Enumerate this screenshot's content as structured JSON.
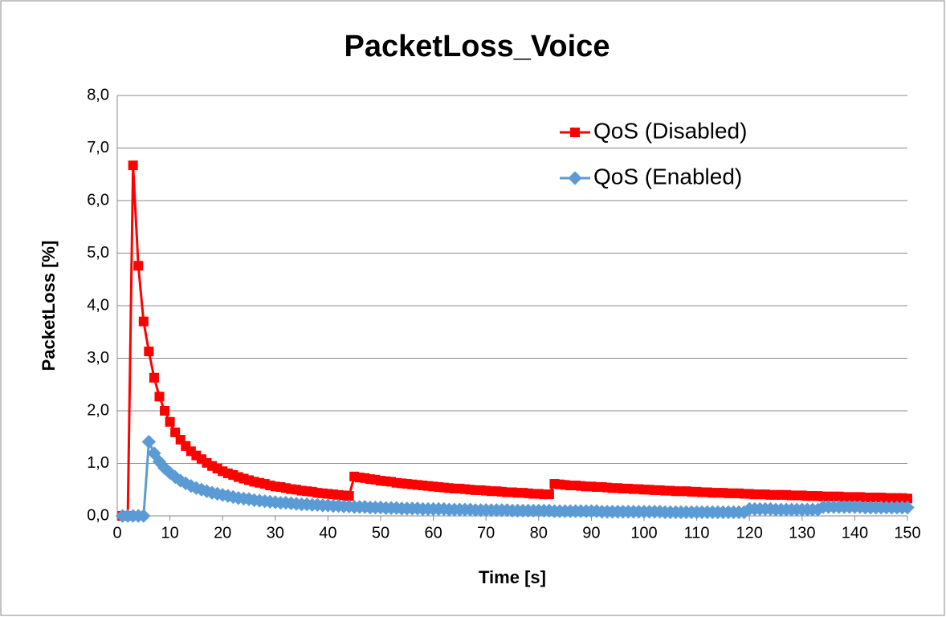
{
  "chart_data": {
    "type": "line",
    "title": "PacketLoss_Voice",
    "x_label": "Time [s]",
    "y_label": "PacketLoss [%]",
    "xlim": [
      0,
      150
    ],
    "xticks": [
      0,
      10,
      20,
      30,
      40,
      50,
      60,
      70,
      80,
      90,
      100,
      110,
      120,
      130,
      140,
      150
    ],
    "ylim": [
      0,
      8
    ],
    "yticks": [
      {
        "value": 0,
        "label": "0,0"
      },
      {
        "value": 1,
        "label": "1,0"
      },
      {
        "value": 2,
        "label": "2,0"
      },
      {
        "value": 3,
        "label": "3,0"
      },
      {
        "value": 4,
        "label": "4,0"
      },
      {
        "value": 5,
        "label": "5,0"
      },
      {
        "value": 6,
        "label": "6,0"
      },
      {
        "value": 7,
        "label": "7,0"
      },
      {
        "value": 8,
        "label": "8,0"
      }
    ],
    "grid": true,
    "legend": "upper right",
    "x": [
      1,
      2,
      3,
      4,
      5,
      6,
      7,
      8,
      9,
      10,
      11,
      12,
      13,
      14,
      15,
      16,
      17,
      18,
      19,
      20,
      21,
      22,
      23,
      24,
      25,
      26,
      27,
      28,
      29,
      30,
      31,
      32,
      33,
      34,
      35,
      36,
      37,
      38,
      39,
      40,
      41,
      42,
      43,
      44,
      45,
      46,
      47,
      48,
      49,
      50,
      51,
      52,
      53,
      54,
      55,
      56,
      57,
      58,
      59,
      60,
      61,
      62,
      63,
      64,
      65,
      66,
      67,
      68,
      69,
      70,
      71,
      72,
      73,
      74,
      75,
      76,
      77,
      78,
      79,
      80,
      81,
      82,
      83,
      84,
      85,
      86,
      87,
      88,
      89,
      90,
      91,
      92,
      93,
      94,
      95,
      96,
      97,
      98,
      99,
      100,
      101,
      102,
      103,
      104,
      105,
      106,
      107,
      108,
      109,
      110,
      111,
      112,
      113,
      114,
      115,
      116,
      117,
      118,
      119,
      120,
      121,
      122,
      123,
      124,
      125,
      126,
      127,
      128,
      129,
      130,
      131,
      132,
      133,
      134,
      135,
      136,
      137,
      138,
      139,
      140,
      141,
      142,
      143,
      144,
      145,
      146,
      147,
      148,
      149,
      150
    ],
    "series": [
      {
        "name": "QoS (Disabled)",
        "color": "#ff0000",
        "marker": "square",
        "values": [
          0,
          0,
          6.67,
          4.76,
          3.7,
          3.13,
          2.63,
          2.27,
          2.0,
          1.79,
          1.59,
          1.45,
          1.33,
          1.23,
          1.15,
          1.08,
          1.01,
          0.95,
          0.9,
          0.85,
          0.81,
          0.78,
          0.74,
          0.71,
          0.68,
          0.65,
          0.63,
          0.61,
          0.58,
          0.56,
          0.55,
          0.53,
          0.51,
          0.5,
          0.48,
          0.47,
          0.46,
          0.44,
          0.43,
          0.42,
          0.41,
          0.4,
          0.39,
          0.38,
          0.75,
          0.73,
          0.72,
          0.7,
          0.69,
          0.67,
          0.66,
          0.65,
          0.63,
          0.62,
          0.61,
          0.6,
          0.59,
          0.58,
          0.57,
          0.56,
          0.55,
          0.54,
          0.53,
          0.52,
          0.52,
          0.51,
          0.5,
          0.49,
          0.49,
          0.48,
          0.47,
          0.47,
          0.46,
          0.45,
          0.45,
          0.44,
          0.44,
          0.43,
          0.42,
          0.42,
          0.41,
          0.41,
          0.61,
          0.6,
          0.59,
          0.58,
          0.58,
          0.57,
          0.56,
          0.56,
          0.55,
          0.55,
          0.54,
          0.53,
          0.53,
          0.52,
          0.52,
          0.51,
          0.51,
          0.5,
          0.5,
          0.49,
          0.49,
          0.48,
          0.48,
          0.47,
          0.47,
          0.47,
          0.46,
          0.46,
          0.45,
          0.45,
          0.44,
          0.44,
          0.44,
          0.43,
          0.43,
          0.43,
          0.42,
          0.42,
          0.41,
          0.41,
          0.41,
          0.4,
          0.4,
          0.4,
          0.4,
          0.39,
          0.39,
          0.39,
          0.38,
          0.38,
          0.38,
          0.37,
          0.37,
          0.37,
          0.37,
          0.36,
          0.36,
          0.36,
          0.36,
          0.35,
          0.35,
          0.35,
          0.35,
          0.34,
          0.34,
          0.34,
          0.34,
          0.33
        ]
      },
      {
        "name": "QoS (Enabled)",
        "color": "#5b9bd5",
        "marker": "diamond",
        "values": [
          0,
          0,
          0,
          0,
          0,
          1.41,
          1.19,
          1.03,
          0.91,
          0.82,
          0.74,
          0.67,
          0.62,
          0.57,
          0.53,
          0.5,
          0.47,
          0.44,
          0.42,
          0.4,
          0.38,
          0.36,
          0.34,
          0.33,
          0.32,
          0.3,
          0.29,
          0.28,
          0.27,
          0.26,
          0.25,
          0.25,
          0.24,
          0.23,
          0.22,
          0.22,
          0.21,
          0.21,
          0.2,
          0.2,
          0.19,
          0.19,
          0.18,
          0.18,
          0.17,
          0.17,
          0.17,
          0.16,
          0.16,
          0.16,
          0.15,
          0.15,
          0.15,
          0.14,
          0.14,
          0.14,
          0.14,
          0.13,
          0.13,
          0.13,
          0.13,
          0.13,
          0.12,
          0.12,
          0.12,
          0.12,
          0.12,
          0.11,
          0.11,
          0.11,
          0.11,
          0.11,
          0.11,
          0.11,
          0.1,
          0.1,
          0.1,
          0.1,
          0.1,
          0.1,
          0.1,
          0.1,
          0.09,
          0.09,
          0.09,
          0.09,
          0.09,
          0.09,
          0.09,
          0.09,
          0.09,
          0.08,
          0.08,
          0.08,
          0.08,
          0.08,
          0.08,
          0.08,
          0.08,
          0.08,
          0.08,
          0.08,
          0.08,
          0.07,
          0.07,
          0.07,
          0.07,
          0.07,
          0.07,
          0.07,
          0.07,
          0.07,
          0.07,
          0.07,
          0.07,
          0.07,
          0.07,
          0.07,
          0.07,
          0.13,
          0.13,
          0.13,
          0.13,
          0.13,
          0.12,
          0.12,
          0.12,
          0.12,
          0.12,
          0.12,
          0.12,
          0.12,
          0.12,
          0.17,
          0.17,
          0.17,
          0.17,
          0.17,
          0.17,
          0.17,
          0.17,
          0.16,
          0.16,
          0.16,
          0.16,
          0.16,
          0.16,
          0.16,
          0.16,
          0.16
        ]
      }
    ]
  }
}
